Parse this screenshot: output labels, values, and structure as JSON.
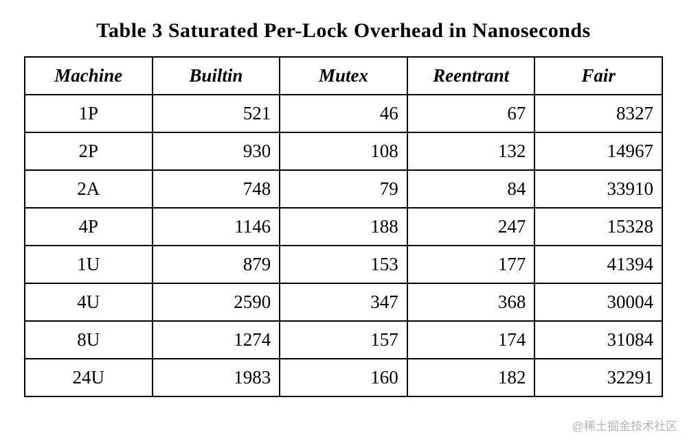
{
  "page": {
    "title": "Table 3 Saturated Per-Lock Overhead in Nanoseconds",
    "watermark": "@稀土掘金技术社区"
  },
  "table": {
    "columns": [
      "Machine",
      "Builtin",
      "Mutex",
      "Reentrant",
      "Fair"
    ],
    "rows": [
      [
        "1P",
        "521",
        "46",
        "67",
        "8327"
      ],
      [
        "2P",
        "930",
        "108",
        "132",
        "14967"
      ],
      [
        "2A",
        "748",
        "79",
        "84",
        "33910"
      ],
      [
        "4P",
        "1146",
        "188",
        "247",
        "15328"
      ],
      [
        "1U",
        "879",
        "153",
        "177",
        "41394"
      ],
      [
        "4U",
        "2590",
        "347",
        "368",
        "30004"
      ],
      [
        "8U",
        "1274",
        "157",
        "174",
        "31084"
      ],
      [
        "24U",
        "1983",
        "160",
        "182",
        "32291"
      ]
    ]
  },
  "colors": {
    "text": "#000000",
    "border": "#000000",
    "background": "#ffffff",
    "watermark": "#b5b5b5"
  }
}
